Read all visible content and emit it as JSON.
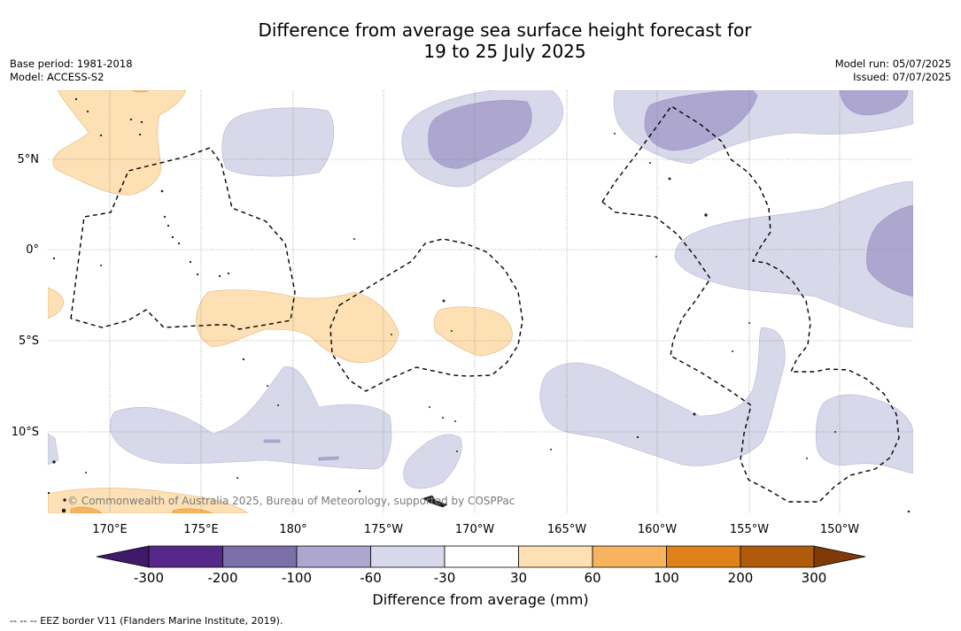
{
  "title_line1": "Difference from average sea surface height forecast for",
  "title_line2": "19 to 25 July 2025",
  "base_period": "Base period: 1981-2018",
  "model": "Model: ACCESS-S2",
  "model_run": "Model run: 05/07/2025",
  "issued": "Issued: 07/07/2025",
  "copyright": "© Commonwealth of Australia 2025, Bureau of Meteorology, supported by COSPPac",
  "lat_labels": [
    "5°N",
    "0°",
    "5°S",
    "10°S"
  ],
  "lon_labels": [
    "170°E",
    "175°E",
    "180°",
    "175°W",
    "170°W",
    "165°W",
    "160°W",
    "155°W",
    "150°W"
  ],
  "legend": {
    "title": "Difference from average (mm)",
    "ticks": [
      "-300",
      "-200",
      "-100",
      "-60",
      "-30",
      "30",
      "60",
      "100",
      "200",
      "300"
    ],
    "colors": [
      "#3f1a6b",
      "#57288a",
      "#7c70ab",
      "#ada7d0",
      "#d7d8e9",
      "#ffffff",
      "#fde0b4",
      "#f8b35e",
      "#e0811a",
      "#b05a0c",
      "#7f3a08"
    ]
  },
  "footnote": "-- -- -- EEZ border V11 (Flanders Marine Institute, 2019).",
  "colors": {
    "light_purple": "#d7d8e9",
    "mid_purple": "#ada7d0",
    "light_orange": "#fde0b4",
    "mid_orange": "#f8b35e"
  }
}
